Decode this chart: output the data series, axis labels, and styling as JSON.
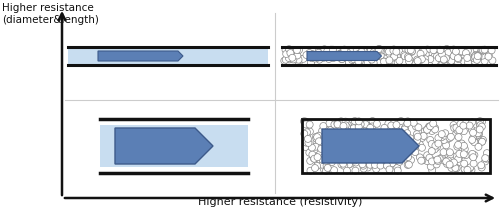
{
  "title_y": "Higher resistance\n(diameter&length)",
  "title_x": "Higher resistance (resistivity)",
  "bg_color": "#ffffff",
  "light_blue": "#c8ddf0",
  "steel_blue": "#5b7fb5",
  "steel_blue_dark": "#3d5a8a",
  "dark": "#111111",
  "gray_line": "#cccccc",
  "dot_color": "#888888"
}
